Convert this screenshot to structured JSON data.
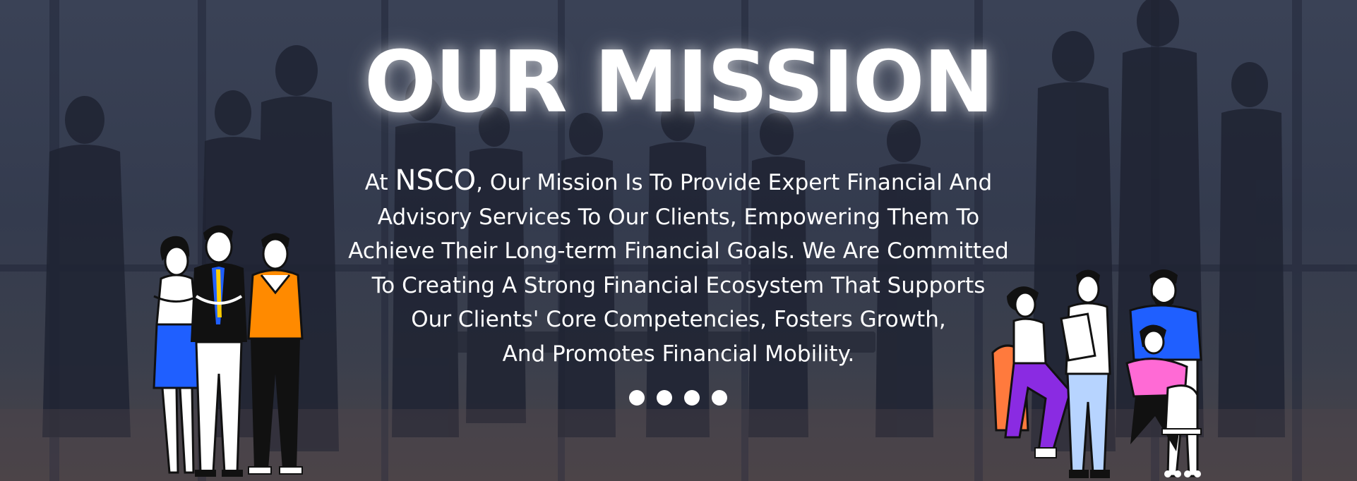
{
  "banner": {
    "title": "OUR MISSION",
    "body_prefix": "At ",
    "brand": "NSCO",
    "body_line1_rest": ", Our Mission Is To Provide Expert Financial And",
    "body_line2": "Advisory Services To Our Clients, Empowering Them To",
    "body_line3": "Achieve Their Long-term Financial Goals. We Are Committed",
    "body_line4": "To Creating A Strong Financial Ecosystem That Supports",
    "body_line5": "Our Clients' Core Competencies, Fosters Growth,",
    "body_line6": "And Promotes Financial Mobility."
  },
  "carousel": {
    "slide_count": 4
  },
  "colors": {
    "background": "#343b4e",
    "text": "#ffffff",
    "accent_blue": "#1f5fff",
    "accent_orange": "#ff8a00",
    "accent_purple": "#8a2be2",
    "accent_pink": "#ff6ad5"
  }
}
